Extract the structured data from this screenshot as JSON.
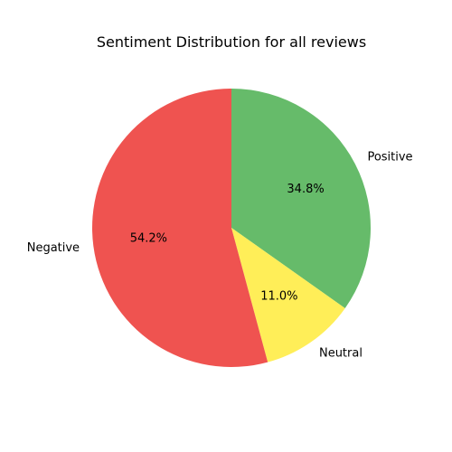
{
  "chart_data": {
    "type": "pie",
    "title": "Sentiment Distribution for all reviews",
    "slices": [
      {
        "label": "Positive",
        "value": 34.8,
        "pct_label": "34.8%",
        "color": "#66bb6a"
      },
      {
        "label": "Neutral",
        "value": 11.0,
        "pct_label": "11.0%",
        "color": "#ffee58"
      },
      {
        "label": "Negative",
        "value": 54.2,
        "pct_label": "54.2%",
        "color": "#ef5350"
      }
    ],
    "start_angle_deg": 90,
    "direction": "clockwise",
    "legend": "none"
  }
}
